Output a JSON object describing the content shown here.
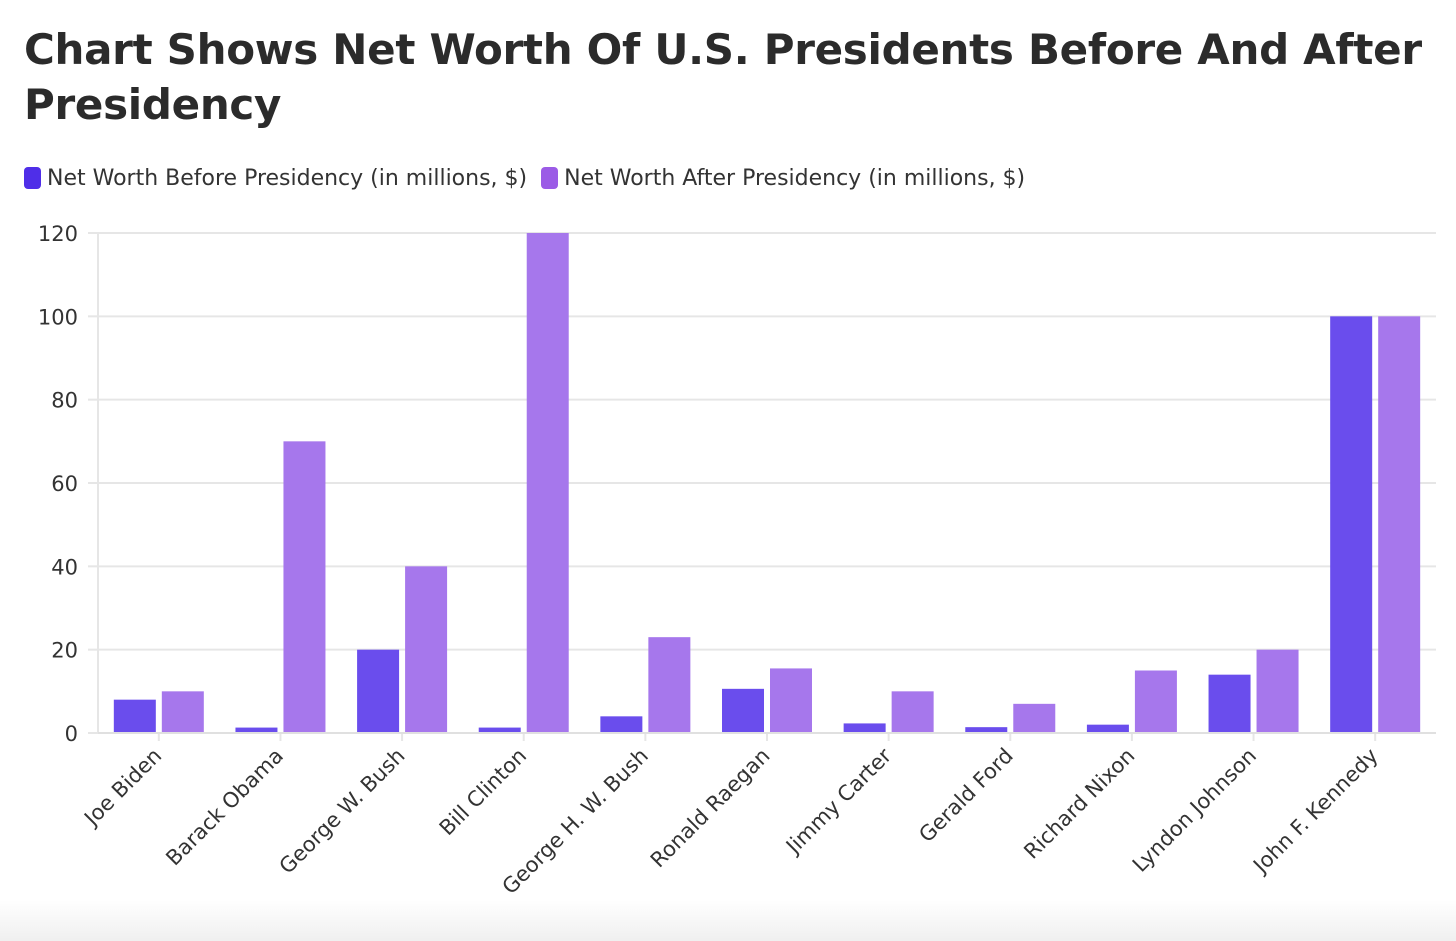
{
  "chart_data": {
    "type": "bar",
    "title": "Chart Shows Net Worth Of U.S. Presidents Before And After Presidency",
    "xlabel": "",
    "ylabel": "",
    "ylim": [
      0,
      120
    ],
    "yticks": [
      0,
      20,
      40,
      60,
      80,
      100,
      120
    ],
    "grid": true,
    "legend_position": "top-left",
    "categories": [
      "Joe Biden",
      "Barack Obama",
      "George W. Bush",
      "Bill Clinton",
      "George H. W. Bush",
      "Ronald Raegan",
      "Jimmy Carter",
      "Gerald Ford",
      "Richard Nixon",
      "Lyndon Johnson",
      "John F. Kennedy"
    ],
    "series": [
      {
        "name": "Net Worth Before Presidency (in millions, $)",
        "color": "#6a4ded",
        "legend_color": "#4f2ee8",
        "values": [
          8,
          1.3,
          20,
          1.3,
          4,
          10.6,
          2.3,
          1.4,
          2,
          14,
          100
        ]
      },
      {
        "name": "Net Worth After Presidency (in millions, $)",
        "color": "#a677ec",
        "legend_color": "#9b5be6",
        "values": [
          10,
          70,
          40,
          120,
          23,
          15.5,
          10,
          7,
          15,
          20,
          100
        ]
      }
    ]
  }
}
